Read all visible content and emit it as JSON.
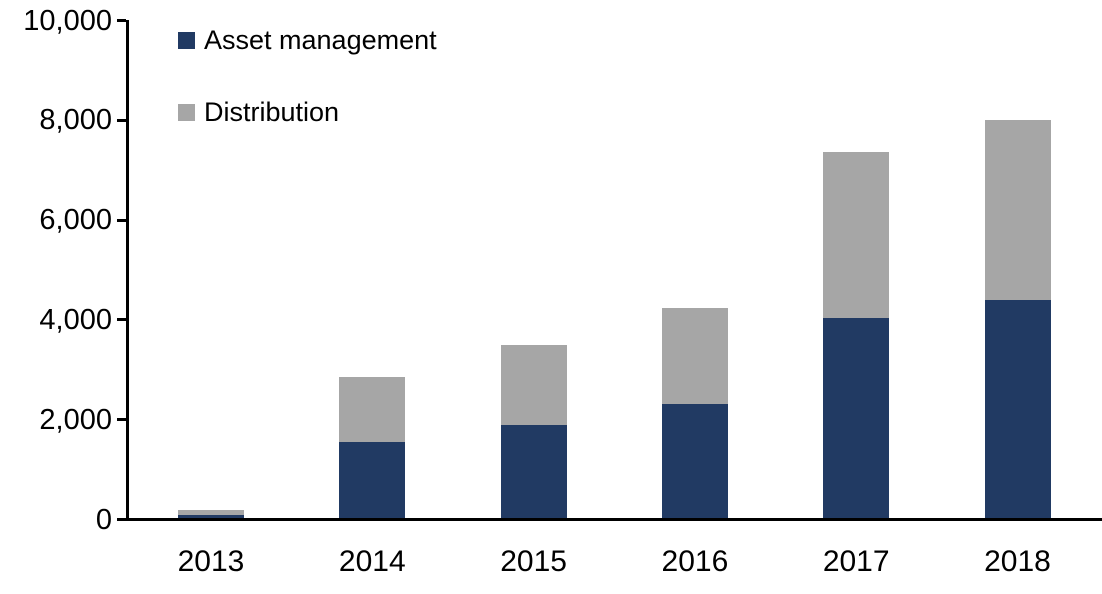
{
  "chart_data": {
    "type": "bar",
    "stacked": true,
    "title": "",
    "xlabel": "",
    "ylabel": "",
    "categories": [
      "2013",
      "2014",
      "2015",
      "2016",
      "2017",
      "2018"
    ],
    "series": [
      {
        "name": "Asset management",
        "color": "#213A63",
        "values": [
          100,
          1550,
          1890,
          2310,
          4030,
          4400
        ]
      },
      {
        "name": "Distribution",
        "color": "#A6A6A6",
        "values": [
          90,
          1310,
          1610,
          1930,
          3340,
          3600
        ]
      }
    ],
    "totals": [
      190,
      2860,
      3500,
      4240,
      7370,
      8000
    ],
    "ylim": [
      0,
      10000
    ],
    "y_ticks": [
      {
        "value": 0,
        "label": "0"
      },
      {
        "value": 2000,
        "label": "2,000"
      },
      {
        "value": 4000,
        "label": "4,000"
      },
      {
        "value": 6000,
        "label": "6,000"
      },
      {
        "value": 8000,
        "label": "8,000"
      },
      {
        "value": 10000,
        "label": "10,000"
      }
    ],
    "grid": false,
    "legend_position": "top-left"
  },
  "colors": {
    "axis": "#000000",
    "text": "#000000",
    "background": "#FFFFFF"
  }
}
